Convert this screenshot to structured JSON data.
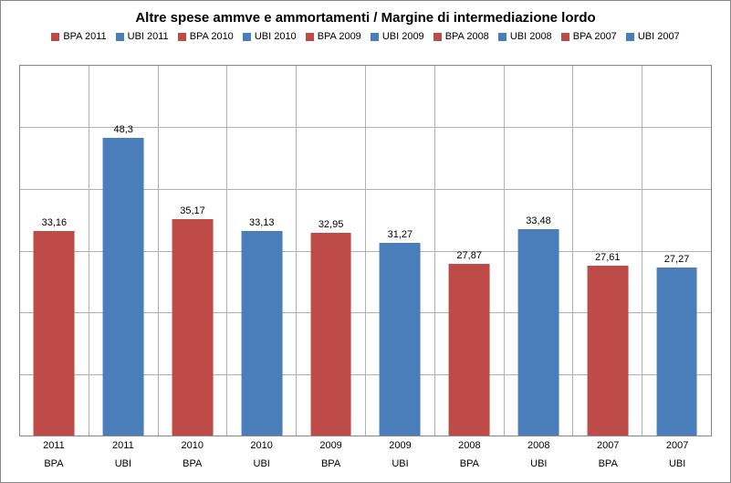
{
  "chart": {
    "type": "bar",
    "title": "Altre spese ammve e ammortamenti / Margine di intermediazione lordo",
    "title_fontsize": 15,
    "title_fontweight": "bold",
    "background_color": "#ffffff",
    "border_color": "#888888",
    "grid_color": "#b0b0b0",
    "label_fontsize": 11,
    "ylim": [
      0,
      60
    ],
    "ytick_step": 10,
    "bar_width": 0.6,
    "colors": {
      "BPA": "#be4b48",
      "UBI": "#4a7ebb"
    },
    "legend": [
      {
        "label": "BPA 2011",
        "color": "#be4b48"
      },
      {
        "label": "UBI 2011",
        "color": "#4a7ebb"
      },
      {
        "label": "BPA 2010",
        "color": "#be4b48"
      },
      {
        "label": "UBI 2010",
        "color": "#4a7ebb"
      },
      {
        "label": "BPA 2009",
        "color": "#be4b48"
      },
      {
        "label": "UBI 2009",
        "color": "#4a7ebb"
      },
      {
        "label": "BPA 2008",
        "color": "#be4b48"
      },
      {
        "label": "UBI 2008",
        "color": "#4a7ebb"
      },
      {
        "label": "BPA 2007",
        "color": "#be4b48"
      },
      {
        "label": "UBI 2007",
        "color": "#4a7ebb"
      }
    ],
    "bars": [
      {
        "year": "2011",
        "series": "BPA",
        "value": 33.16,
        "label": "33,16",
        "color": "#be4b48"
      },
      {
        "year": "2011",
        "series": "UBI",
        "value": 48.3,
        "label": "48,3",
        "color": "#4a7ebb"
      },
      {
        "year": "2010",
        "series": "BPA",
        "value": 35.17,
        "label": "35,17",
        "color": "#be4b48"
      },
      {
        "year": "2010",
        "series": "UBI",
        "value": 33.13,
        "label": "33,13",
        "color": "#4a7ebb"
      },
      {
        "year": "2009",
        "series": "BPA",
        "value": 32.95,
        "label": "32,95",
        "color": "#be4b48"
      },
      {
        "year": "2009",
        "series": "UBI",
        "value": 31.27,
        "label": "31,27",
        "color": "#4a7ebb"
      },
      {
        "year": "2008",
        "series": "BPA",
        "value": 27.87,
        "label": "27,87",
        "color": "#be4b48"
      },
      {
        "year": "2008",
        "series": "UBI",
        "value": 33.48,
        "label": "33,48",
        "color": "#4a7ebb"
      },
      {
        "year": "2007",
        "series": "BPA",
        "value": 27.61,
        "label": "27,61",
        "color": "#be4b48"
      },
      {
        "year": "2007",
        "series": "UBI",
        "value": 27.27,
        "label": "27,27",
        "color": "#4a7ebb"
      }
    ]
  }
}
